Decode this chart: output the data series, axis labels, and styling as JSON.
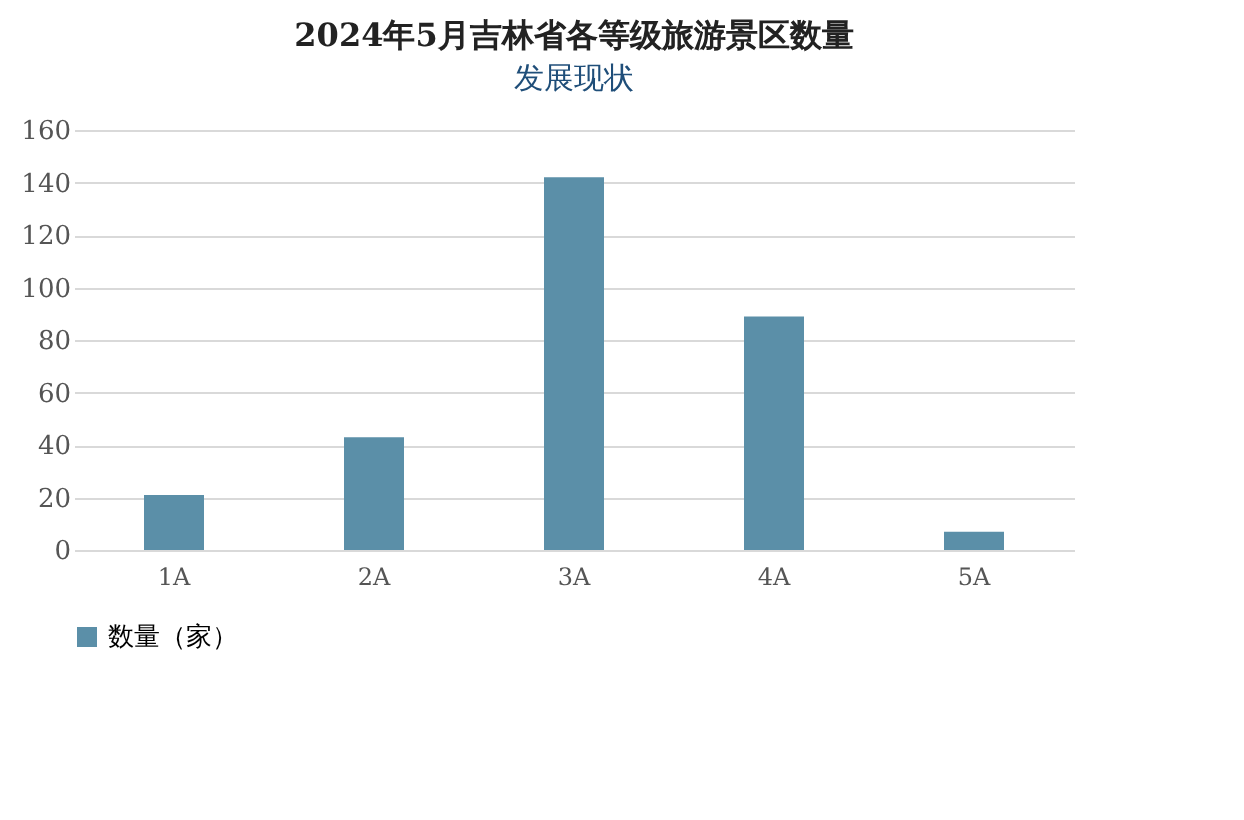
{
  "chart_data": {
    "type": "bar",
    "title": "2024年5月吉林省各等级旅游景区数量",
    "annotations": [
      "发展现状"
    ],
    "categories": [
      "1A",
      "2A",
      "3A",
      "4A",
      "5A"
    ],
    "series": [
      {
        "name": "数量（家）",
        "color": "#5b8fa8",
        "values": [
          21,
          43,
          142,
          89,
          7
        ]
      }
    ],
    "ylim": [
      0,
      160
    ],
    "yticks": [
      0,
      20,
      40,
      60,
      80,
      100,
      120,
      140,
      160
    ],
    "grid": "y",
    "legend": "bottom"
  }
}
